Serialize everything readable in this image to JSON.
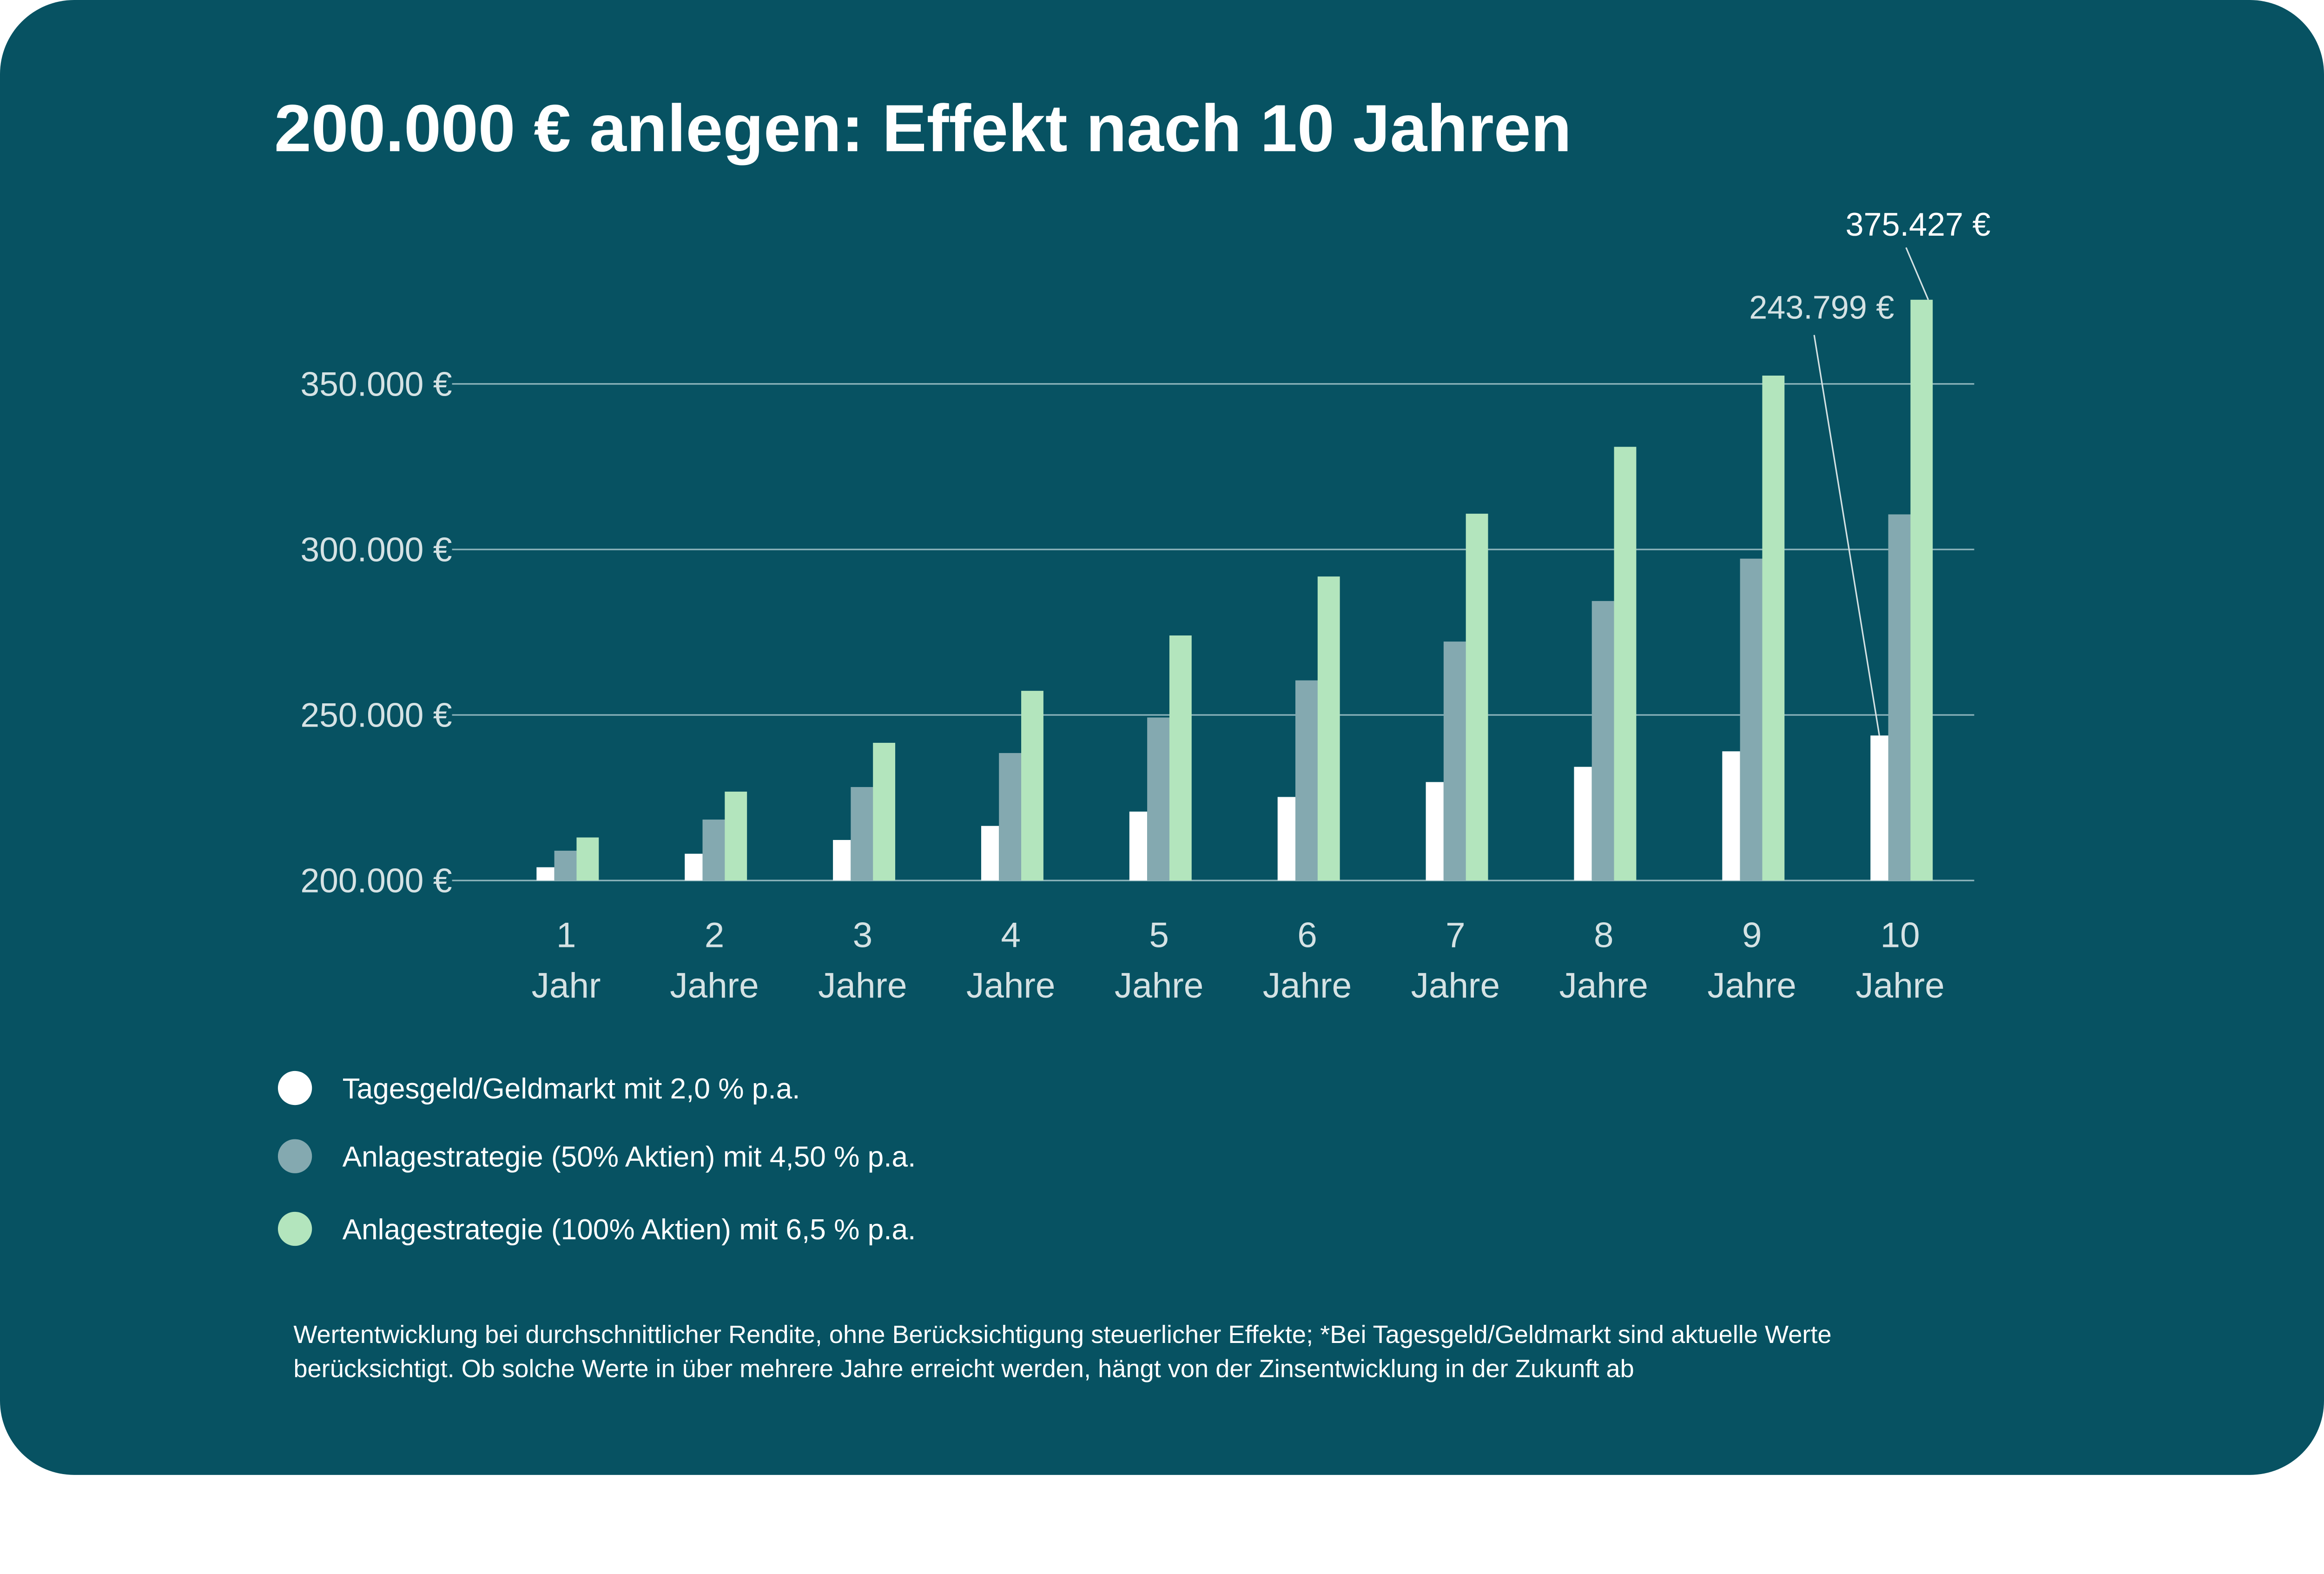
{
  "chart_data": {
    "type": "bar",
    "title": "200.000 € anlegen: Effekt nach 10 Jahren",
    "xlabel": "",
    "ylabel": "",
    "ylim": [
      200000,
      375427
    ],
    "yticks": [
      200000,
      250000,
      300000,
      350000
    ],
    "ytick_labels": [
      "200.000 €",
      "250.000 €",
      "300.000 €",
      "350.000 €"
    ],
    "grid": true,
    "categories": [
      [
        "1",
        "Jahr"
      ],
      [
        "2",
        "Jahre"
      ],
      [
        "3",
        "Jahre"
      ],
      [
        "4",
        "Jahre"
      ],
      [
        "5",
        "Jahre"
      ],
      [
        "6",
        "Jahre"
      ],
      [
        "7",
        "Jahre"
      ],
      [
        "8",
        "Jahre"
      ],
      [
        "9",
        "Jahre"
      ],
      [
        "10",
        "Jahre"
      ]
    ],
    "series": [
      {
        "name": "Tagesgeld/Geldmarkt mit 2,0 % p.a.",
        "color": "#ffffff",
        "values": [
          204000,
          208080,
          212242,
          216486,
          220816,
          225232,
          229737,
          234332,
          239019,
          243799
        ]
      },
      {
        "name": "Anlagestrategie (50% Aktien) mit 4,50 % p.a.",
        "color": "#84a9b0",
        "values": [
          209000,
          218405,
          228233,
          238504,
          249239,
          260454,
          272176,
          284424,
          297222,
          310594
        ]
      },
      {
        "name": "Anlagestrategie (100% Aktien) mit 6,5 % p.a.",
        "color": "#b3e5bd",
        "values": [
          213000,
          226845,
          241590,
          257293,
          274017,
          291828,
          310797,
          331000,
          352515,
          375427
        ]
      }
    ],
    "annotations": [
      {
        "text": "375.427 €",
        "series": 2,
        "index": 9
      },
      {
        "text": "243.799 €",
        "series": 0,
        "index": 9
      }
    ],
    "legend_position": "bottom-left"
  },
  "footnote": [
    "Wertentwicklung bei durchschnittlicher Rendite, ohne Berücksichtigung steuerlicher Effekte; *Bei Tagesgeld/Geldmarkt sind aktuelle Werte",
    "berücksichtigt. Ob solche Werte in über mehrere Jahre erreicht werden, hängt von der Zinsentwicklung in der Zukunft ab"
  ],
  "colors": {
    "background": "#075262",
    "grid": "#8fb6bd",
    "text": "#ffffff",
    "muted_text": "#d5e2e4"
  }
}
